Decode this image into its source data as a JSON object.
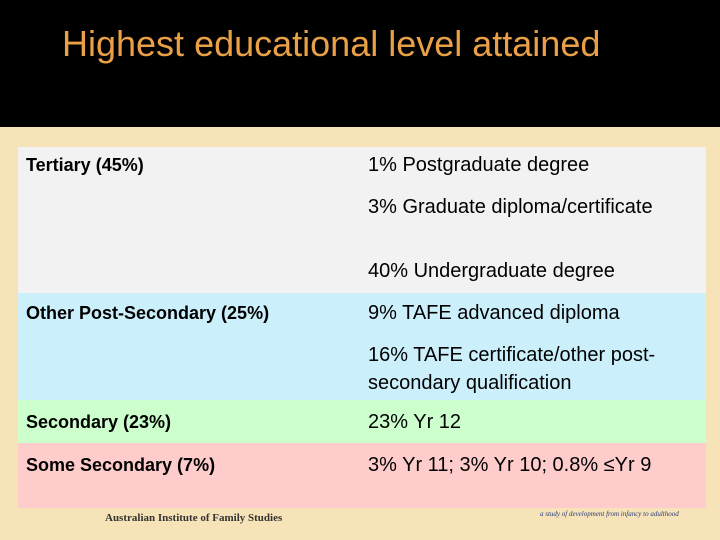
{
  "header": {
    "title": "Highest educational level attained"
  },
  "table": {
    "rows": [
      {
        "label": "Tertiary (45%)",
        "items": [
          "1% Postgraduate degree",
          "3% Graduate diploma/certificate",
          "40% Undergraduate degree"
        ]
      },
      {
        "label": "Other Post-Secondary (25%)",
        "items": [
          "9% TAFE advanced diploma",
          "16% TAFE certificate/other post-secondary qualification"
        ]
      },
      {
        "label": "Secondary (23%)",
        "items": [
          "23% Yr 12"
        ]
      },
      {
        "label": "Some Secondary (7%)",
        "items": [
          "3% Yr 11; 3% Yr 10; 0.8% ≤Yr 9"
        ]
      }
    ]
  },
  "footer": {
    "left": "Australian Institute of Family Studies",
    "right": "a study of development from infancy to adulthood"
  }
}
